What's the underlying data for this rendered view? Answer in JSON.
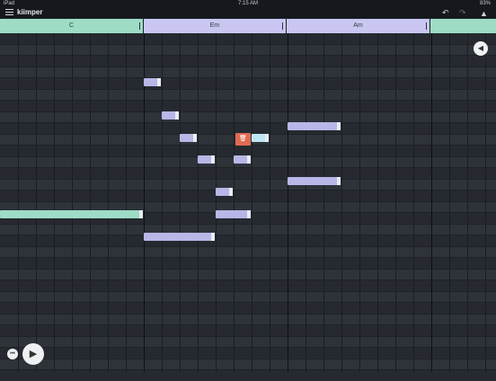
{
  "status_bar": {
    "left": "iPad",
    "time": "7:15 AM",
    "battery": "83%"
  },
  "app": {
    "title": "kiimper"
  },
  "icons": {
    "menu": "hamburger-icon",
    "undo": "undo-icon",
    "redo": "redo-icon",
    "learn": "graduation-cap-icon",
    "delete": "trash-icon",
    "volume": "speaker-icon",
    "play": "play-icon",
    "rewind": "skip-back-icon"
  },
  "chords": [
    {
      "label": "C",
      "color": "#9edcc6"
    },
    {
      "label": "Em",
      "color": "#c9c7f2"
    },
    {
      "label": "Am",
      "color": "#c9c7f2"
    },
    {
      "label": "",
      "color": "#9edcc6"
    }
  ],
  "colors": {
    "accent_green": "#9edcc6",
    "accent_purple": "#b9b6e8",
    "selected_note": "#bfe6f6",
    "delete": "#e06a52"
  }
}
